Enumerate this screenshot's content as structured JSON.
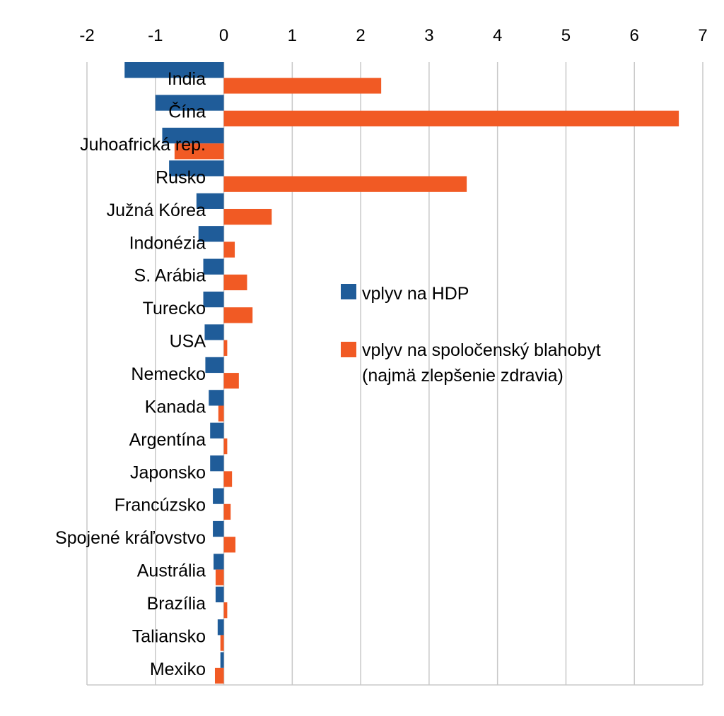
{
  "chart_data": {
    "type": "bar",
    "orientation": "horizontal",
    "title": "",
    "xlabel": "",
    "ylabel": "",
    "xlim": [
      -2,
      7
    ],
    "x_ticks": [
      "-2",
      "-1",
      "0",
      "1",
      "2",
      "3",
      "4",
      "5",
      "6",
      "7"
    ],
    "grid": true,
    "legend_position": "right-middle",
    "categories": [
      "India",
      "Čína",
      "Juhoafrická rep.",
      "Rusko",
      "Južná Kórea",
      "Indonézia",
      "S. Arábia",
      "Turecko",
      "USA",
      "Nemecko",
      "Kanada",
      "Argentína",
      "Japonsko",
      "Francúzsko",
      "Spojené kráľovstvo",
      "Austrália",
      "Brazília",
      "Taliansko",
      "Mexiko"
    ],
    "series": [
      {
        "name": "vplyv na HDP",
        "color": "#1f5c99",
        "values": [
          -1.45,
          -1.0,
          -0.9,
          -0.8,
          -0.4,
          -0.37,
          -0.3,
          -0.3,
          -0.28,
          -0.27,
          -0.22,
          -0.2,
          -0.2,
          -0.16,
          -0.16,
          -0.15,
          -0.12,
          -0.09,
          -0.05
        ]
      },
      {
        "name": "vplyv na spoločenský blahobyt (najmä zlepšenie zdravia)",
        "legend_lines": [
          "vplyv na spoločenský blahobyt",
          "(najmä zlepšenie zdravia)"
        ],
        "color": "#f15a24",
        "values": [
          2.3,
          6.65,
          -0.72,
          3.55,
          0.7,
          0.16,
          0.34,
          0.42,
          0.05,
          0.22,
          -0.08,
          0.05,
          0.12,
          0.1,
          0.17,
          -0.12,
          0.05,
          -0.05,
          -0.13
        ]
      }
    ]
  }
}
